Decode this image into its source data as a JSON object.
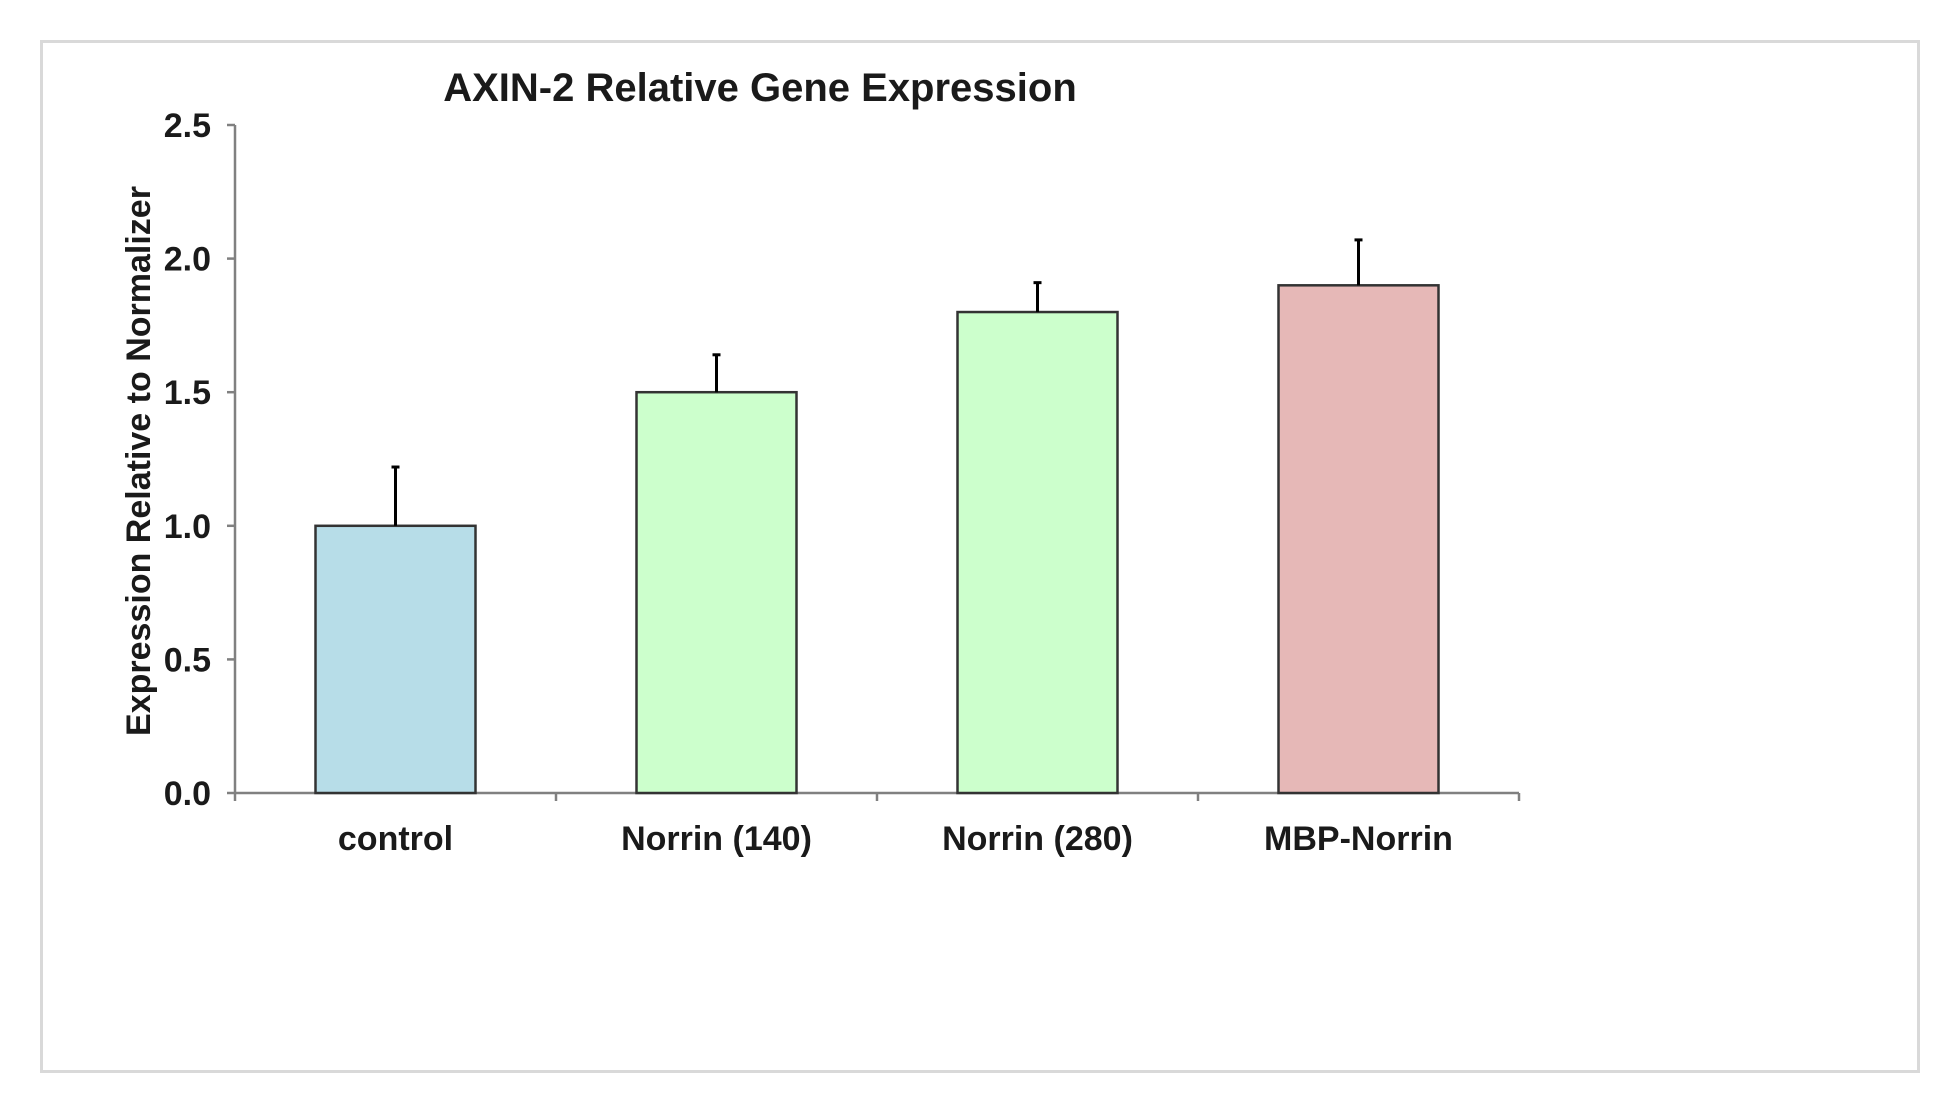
{
  "chart_data": {
    "type": "bar",
    "title": "AXIN-2 Relative Gene Expression",
    "xlabel": "",
    "ylabel": "Expression Relative to Normalizer",
    "ylim": [
      0,
      2.5
    ],
    "yticks": [
      "0.0",
      "0.5",
      "1.0",
      "1.5",
      "2.0",
      "2.5"
    ],
    "categories": [
      "control",
      "Norrin (140)",
      "Norrin (280)",
      "MBP-Norrin"
    ],
    "values": [
      1.0,
      1.5,
      1.8,
      1.9
    ],
    "error_upper": [
      0.22,
      0.14,
      0.11,
      0.17
    ],
    "bar_colors": [
      "#b7dde8",
      "#ccffcc",
      "#ccffcc",
      "#e6b8b7"
    ],
    "grid": false,
    "legend": "none"
  }
}
